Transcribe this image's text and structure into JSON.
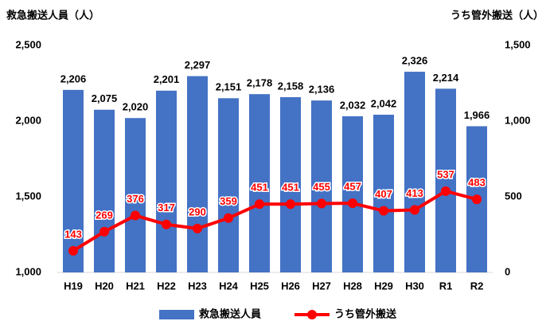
{
  "chart_data": {
    "type": "bar",
    "y_label": "救急搬送人員（人）",
    "y2_label": "うち管外搬送（人）",
    "categories": [
      "H19",
      "H20",
      "H21",
      "H22",
      "H23",
      "H24",
      "H25",
      "H26",
      "H27",
      "H28",
      "H29",
      "H30",
      "R1",
      "R2"
    ],
    "series": [
      {
        "name": "救急搬送人員",
        "color": "#4472c4",
        "values": [
          2206,
          2075,
          2020,
          2201,
          2297,
          2151,
          2178,
          2158,
          2136,
          2032,
          2042,
          2326,
          2214,
          1966
        ],
        "value_labels": [
          "2,206",
          "2,075",
          "2,020",
          "2,201",
          "2,297",
          "2,151",
          "2,178",
          "2,158",
          "2,136",
          "2,032",
          "2,042",
          "2,326",
          "2,214",
          "1,966"
        ]
      },
      {
        "name": "うち管外搬送",
        "color": "#ff0000",
        "axis": "y2",
        "values": [
          143,
          269,
          376,
          317,
          290,
          359,
          451,
          451,
          455,
          457,
          407,
          413,
          537,
          483
        ]
      }
    ],
    "ylim": [
      1000,
      2500
    ],
    "yticks": [
      {
        "value": 1000,
        "label": "1,000"
      },
      {
        "value": 1500,
        "label": "1,500"
      },
      {
        "value": 2000,
        "label": "2,000"
      },
      {
        "value": 2500,
        "label": "2,500"
      }
    ],
    "y2lim": [
      0,
      1500
    ],
    "y2ticks": [
      0,
      500,
      {
        "value": 1000,
        "label": "1,000"
      },
      {
        "value": 1500,
        "label": "1,500"
      }
    ],
    "grid": false,
    "legend": "bottom"
  }
}
